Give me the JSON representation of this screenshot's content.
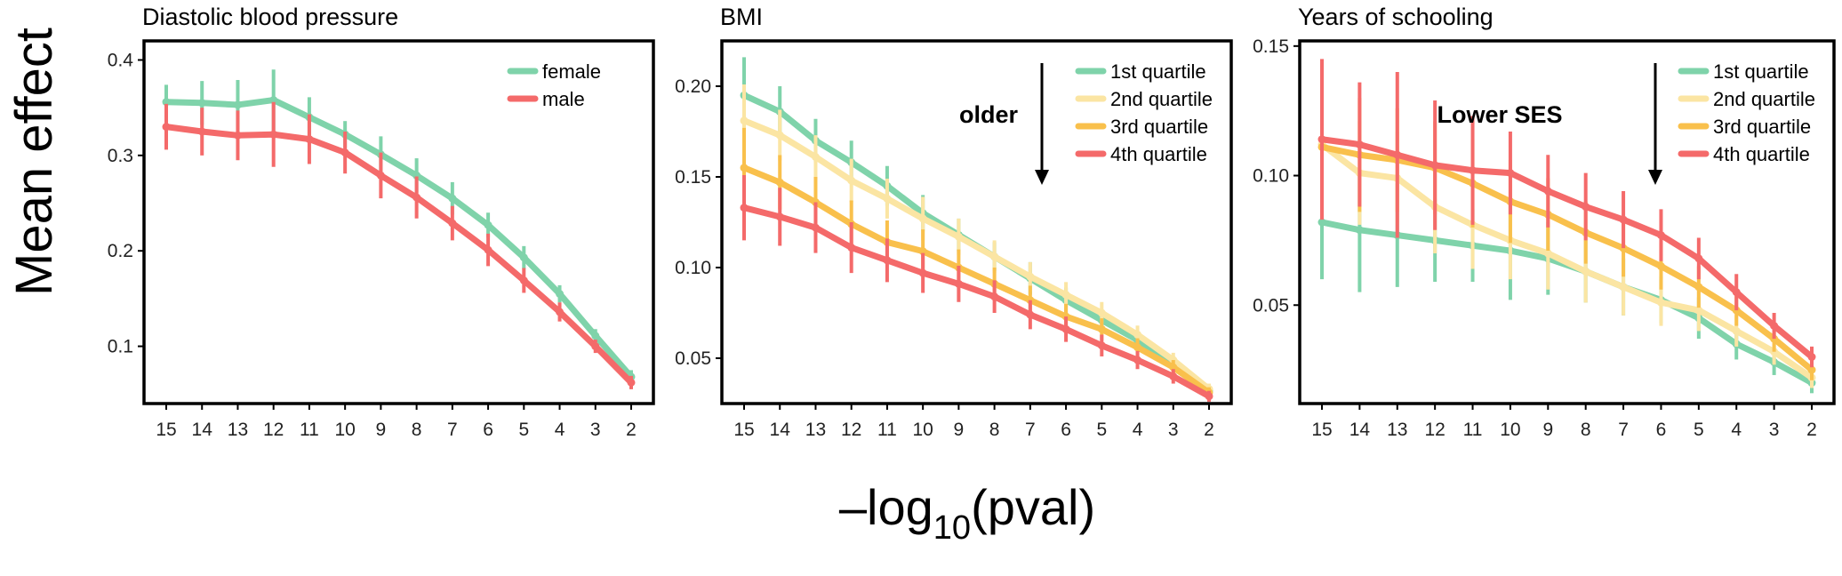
{
  "figure": {
    "ylabel": "Mean effect",
    "xlabel_main": "–log",
    "xlabel_sub": "10",
    "xlabel_tail": "(pval)"
  },
  "chart_data": [
    {
      "type": "line",
      "title": "Diastolic blood pressure",
      "x": [
        15,
        14,
        13,
        12,
        11,
        10,
        9,
        8,
        7,
        6,
        5,
        4,
        3,
        2
      ],
      "ylim": [
        0.04,
        0.42
      ],
      "yticks": [
        0.1,
        0.2,
        0.3,
        0.4
      ],
      "yticklabels": [
        "0.1",
        "0.2",
        "0.3",
        "0.4"
      ],
      "legend_position": "top-right",
      "series": [
        {
          "name": "female",
          "color": "#7fd3aa",
          "values": [
            0.356,
            0.355,
            0.353,
            0.358,
            0.34,
            0.322,
            0.301,
            0.279,
            0.255,
            0.227,
            0.193,
            0.155,
            0.111,
            0.068
          ],
          "error": [
            0.018,
            0.023,
            0.026,
            0.032,
            0.021,
            0.014,
            0.019,
            0.018,
            0.017,
            0.013,
            0.012,
            0.009,
            0.007,
            0.007
          ]
        },
        {
          "name": "male",
          "color": "#f46a6a",
          "values": [
            0.33,
            0.325,
            0.321,
            0.322,
            0.317,
            0.303,
            0.279,
            0.256,
            0.229,
            0.201,
            0.169,
            0.136,
            0.1,
            0.062
          ],
          "error": [
            0.024,
            0.025,
            0.026,
            0.034,
            0.026,
            0.022,
            0.024,
            0.022,
            0.018,
            0.017,
            0.013,
            0.01,
            0.007,
            0.007
          ]
        }
      ]
    },
    {
      "type": "line",
      "title": "BMI",
      "x": [
        15,
        14,
        13,
        12,
        11,
        10,
        9,
        8,
        7,
        6,
        5,
        4,
        3,
        2
      ],
      "ylim": [
        0.025,
        0.225
      ],
      "yticks": [
        0.05,
        0.1,
        0.15,
        0.2
      ],
      "yticklabels": [
        "0.05",
        "0.10",
        "0.15",
        "0.20"
      ],
      "legend_position": "top-right",
      "annotation": {
        "text": "older",
        "arrow": "down"
      },
      "series": [
        {
          "name": "1st quartile",
          "color": "#7fd3aa",
          "values": [
            0.195,
            0.186,
            0.17,
            0.158,
            0.145,
            0.13,
            0.118,
            0.106,
            0.094,
            0.082,
            0.071,
            0.06,
            0.047,
            0.032
          ],
          "error": [
            0.021,
            0.014,
            0.012,
            0.012,
            0.011,
            0.01,
            0.009,
            0.008,
            0.009,
            0.007,
            0.006,
            0.005,
            0.004,
            0.003
          ]
        },
        {
          "name": "2nd quartile",
          "color": "#fbe5a3",
          "values": [
            0.181,
            0.173,
            0.161,
            0.148,
            0.138,
            0.127,
            0.117,
            0.106,
            0.095,
            0.085,
            0.075,
            0.063,
            0.049,
            0.033
          ],
          "error": [
            0.02,
            0.014,
            0.012,
            0.012,
            0.011,
            0.012,
            0.01,
            0.009,
            0.008,
            0.007,
            0.006,
            0.005,
            0.004,
            0.003
          ]
        },
        {
          "name": "3rd quartile",
          "color": "#f9c04c",
          "values": [
            0.155,
            0.147,
            0.136,
            0.124,
            0.114,
            0.109,
            0.1,
            0.091,
            0.082,
            0.073,
            0.066,
            0.056,
            0.045,
            0.031
          ],
          "error": [
            0.022,
            0.015,
            0.014,
            0.013,
            0.012,
            0.012,
            0.01,
            0.009,
            0.008,
            0.007,
            0.006,
            0.005,
            0.004,
            0.003
          ]
        },
        {
          "name": "4th quartile",
          "color": "#f46a6a",
          "values": [
            0.133,
            0.128,
            0.122,
            0.111,
            0.104,
            0.097,
            0.091,
            0.084,
            0.074,
            0.066,
            0.057,
            0.049,
            0.04,
            0.029
          ],
          "error": [
            0.018,
            0.016,
            0.014,
            0.014,
            0.012,
            0.011,
            0.01,
            0.009,
            0.008,
            0.007,
            0.006,
            0.005,
            0.004,
            0.003
          ]
        }
      ]
    },
    {
      "type": "line",
      "title": "Years of schooling",
      "x": [
        15,
        14,
        13,
        12,
        11,
        10,
        9,
        8,
        7,
        6,
        5,
        4,
        3,
        2
      ],
      "ylim": [
        0.012,
        0.152
      ],
      "yticks": [
        0.05,
        0.1,
        0.15
      ],
      "yticklabels": [
        "0.05",
        "0.10",
        "0.15"
      ],
      "legend_position": "top-right",
      "annotation": {
        "text": "Lower SES",
        "arrow": "down"
      },
      "series": [
        {
          "name": "1st quartile",
          "color": "#7fd3aa",
          "values": [
            0.082,
            0.079,
            0.077,
            0.075,
            0.073,
            0.071,
            0.068,
            0.063,
            0.057,
            0.052,
            0.045,
            0.035,
            0.028,
            0.02
          ],
          "error": [
            0.022,
            0.024,
            0.02,
            0.016,
            0.014,
            0.019,
            0.014,
            0.012,
            0.011,
            0.009,
            0.008,
            0.006,
            0.005,
            0.004
          ]
        },
        {
          "name": "2nd quartile",
          "color": "#fbe5a3",
          "values": [
            0.112,
            0.101,
            0.099,
            0.088,
            0.081,
            0.075,
            0.07,
            0.063,
            0.057,
            0.051,
            0.048,
            0.04,
            0.032,
            0.022
          ],
          "error": [
            0.02,
            0.02,
            0.018,
            0.018,
            0.017,
            0.015,
            0.014,
            0.012,
            0.011,
            0.009,
            0.008,
            0.006,
            0.005,
            0.004
          ]
        },
        {
          "name": "3rd quartile",
          "color": "#f9c04c",
          "values": [
            0.111,
            0.108,
            0.106,
            0.103,
            0.097,
            0.09,
            0.085,
            0.078,
            0.072,
            0.065,
            0.057,
            0.048,
            0.037,
            0.025
          ],
          "error": [
            0.02,
            0.022,
            0.02,
            0.018,
            0.017,
            0.016,
            0.014,
            0.012,
            0.011,
            0.009,
            0.008,
            0.006,
            0.005,
            0.004
          ]
        },
        {
          "name": "4th quartile",
          "color": "#f46a6a",
          "values": [
            0.114,
            0.112,
            0.108,
            0.104,
            0.102,
            0.101,
            0.094,
            0.088,
            0.083,
            0.077,
            0.068,
            0.055,
            0.042,
            0.03
          ],
          "error": [
            0.031,
            0.024,
            0.032,
            0.025,
            0.021,
            0.016,
            0.014,
            0.013,
            0.011,
            0.01,
            0.008,
            0.007,
            0.005,
            0.004
          ]
        }
      ]
    }
  ]
}
